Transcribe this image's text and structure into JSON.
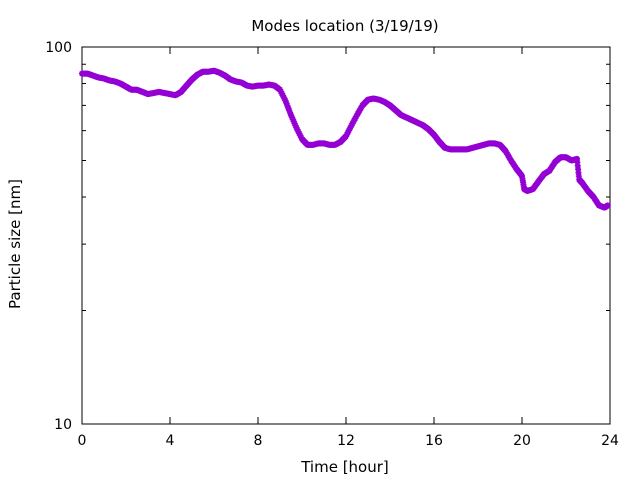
{
  "chart_data": {
    "type": "scatter",
    "title": "Modes location (3/19/19)",
    "xlabel": "Time [hour]",
    "ylabel": "Particle size [nm]",
    "xlim": [
      0,
      24
    ],
    "ylim": [
      10,
      100
    ],
    "yscale": "log",
    "x_ticks": [
      0,
      4,
      8,
      12,
      16,
      20,
      24
    ],
    "x_tick_labels": [
      "0",
      "4",
      "8",
      "12",
      "16",
      "20",
      "24"
    ],
    "y_tick_labels": [
      "10",
      "100"
    ],
    "grid": false,
    "legend": "none",
    "marker": "star",
    "color": "#9400d3",
    "series": [
      {
        "points": [
          [
            0.0,
            85
          ],
          [
            0.25,
            85
          ],
          [
            0.5,
            84
          ],
          [
            0.75,
            83
          ],
          [
            1.0,
            82.5
          ],
          [
            1.25,
            81.5
          ],
          [
            1.5,
            81
          ],
          [
            1.75,
            80
          ],
          [
            2.0,
            78.5
          ],
          [
            2.25,
            77
          ],
          [
            2.5,
            77
          ],
          [
            2.75,
            76
          ],
          [
            3.0,
            75
          ],
          [
            3.25,
            75.5
          ],
          [
            3.5,
            76
          ],
          [
            3.75,
            75.5
          ],
          [
            4.0,
            75
          ],
          [
            4.25,
            74.5
          ],
          [
            4.5,
            76
          ],
          [
            4.75,
            79
          ],
          [
            5.0,
            82
          ],
          [
            5.25,
            84.5
          ],
          [
            5.5,
            86
          ],
          [
            5.75,
            86
          ],
          [
            6.0,
            86.5
          ],
          [
            6.25,
            85.5
          ],
          [
            6.5,
            84
          ],
          [
            6.75,
            82
          ],
          [
            7.0,
            81
          ],
          [
            7.25,
            80.5
          ],
          [
            7.5,
            79
          ],
          [
            7.75,
            78.5
          ],
          [
            8.0,
            79
          ],
          [
            8.25,
            79
          ],
          [
            8.5,
            79.5
          ],
          [
            8.75,
            79
          ],
          [
            9.0,
            77
          ],
          [
            9.25,
            72
          ],
          [
            9.5,
            66
          ],
          [
            9.75,
            61
          ],
          [
            10.0,
            57
          ],
          [
            10.25,
            55
          ],
          [
            10.5,
            55
          ],
          [
            10.75,
            55.5
          ],
          [
            11.0,
            55.5
          ],
          [
            11.25,
            55
          ],
          [
            11.5,
            55
          ],
          [
            11.75,
            56
          ],
          [
            12.0,
            58
          ],
          [
            12.25,
            62
          ],
          [
            12.5,
            66
          ],
          [
            12.75,
            70
          ],
          [
            13.0,
            72.5
          ],
          [
            13.25,
            73
          ],
          [
            13.5,
            72.5
          ],
          [
            13.75,
            71.5
          ],
          [
            14.0,
            70
          ],
          [
            14.25,
            68
          ],
          [
            14.5,
            66
          ],
          [
            14.75,
            65
          ],
          [
            15.0,
            64
          ],
          [
            15.25,
            63
          ],
          [
            15.5,
            62
          ],
          [
            15.75,
            60.5
          ],
          [
            16.0,
            58.5
          ],
          [
            16.25,
            56
          ],
          [
            16.5,
            54
          ],
          [
            16.75,
            53.5
          ],
          [
            17.0,
            53.5
          ],
          [
            17.25,
            53.5
          ],
          [
            17.5,
            53.5
          ],
          [
            17.75,
            54
          ],
          [
            18.0,
            54.5
          ],
          [
            18.25,
            55
          ],
          [
            18.5,
            55.5
          ],
          [
            18.75,
            55.5
          ],
          [
            19.0,
            55
          ],
          [
            19.25,
            53
          ],
          [
            19.5,
            50
          ],
          [
            19.75,
            47.5
          ],
          [
            20.0,
            45.5
          ],
          [
            20.1,
            42
          ],
          [
            20.25,
            41.5
          ],
          [
            20.5,
            42
          ],
          [
            20.75,
            44
          ],
          [
            21.0,
            46
          ],
          [
            21.25,
            47
          ],
          [
            21.5,
            49.5
          ],
          [
            21.75,
            51
          ],
          [
            22.0,
            51
          ],
          [
            22.25,
            50
          ],
          [
            22.5,
            50.5
          ],
          [
            22.6,
            44.5
          ],
          [
            22.75,
            43.5
          ],
          [
            23.0,
            41.5
          ],
          [
            23.25,
            40
          ],
          [
            23.5,
            38
          ],
          [
            23.75,
            37.5
          ],
          [
            23.9,
            38
          ]
        ]
      }
    ]
  }
}
